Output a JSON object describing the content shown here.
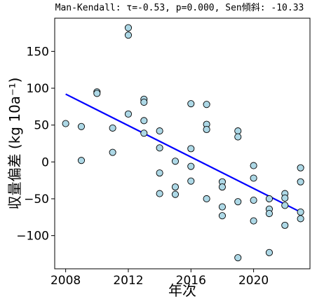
{
  "chart_data": {
    "type": "scatter",
    "title": "Man-Kendall: τ=-0.53, p=0.000, Sen傾斜: -10.33",
    "xlabel": "年次",
    "ylabel": "収量偏差 (kg 10a⁻¹)",
    "xlim": [
      2007.3,
      2023.6
    ],
    "ylim": [
      -145,
      195
    ],
    "xticks": [
      2008,
      2012,
      2016,
      2020
    ],
    "yticks": [
      -100,
      -50,
      0,
      50,
      100,
      150
    ],
    "grid": false,
    "marker_fill": "#add8e6",
    "marker_edge": "#000000",
    "trend_color": "#0000ff",
    "points": [
      [
        2008,
        52
      ],
      [
        2009,
        48
      ],
      [
        2009,
        2
      ],
      [
        2010,
        95
      ],
      [
        2010,
        93
      ],
      [
        2011,
        46
      ],
      [
        2011,
        13
      ],
      [
        2012,
        182
      ],
      [
        2012,
        172
      ],
      [
        2012,
        65
      ],
      [
        2013,
        85
      ],
      [
        2013,
        81
      ],
      [
        2013,
        56
      ],
      [
        2013,
        39
      ],
      [
        2014,
        42
      ],
      [
        2014,
        19
      ],
      [
        2014,
        -15
      ],
      [
        2014,
        -43
      ],
      [
        2015,
        1
      ],
      [
        2015,
        -34
      ],
      [
        2015,
        -44
      ],
      [
        2016,
        79
      ],
      [
        2016,
        18
      ],
      [
        2016,
        -6
      ],
      [
        2016,
        -26
      ],
      [
        2017,
        78
      ],
      [
        2017,
        51
      ],
      [
        2017,
        44
      ],
      [
        2017,
        -50
      ],
      [
        2018,
        -27
      ],
      [
        2018,
        -34
      ],
      [
        2018,
        -61
      ],
      [
        2018,
        -73
      ],
      [
        2019,
        42
      ],
      [
        2019,
        34
      ],
      [
        2019,
        -54
      ],
      [
        2019,
        -130
      ],
      [
        2020,
        -5
      ],
      [
        2020,
        -22
      ],
      [
        2020,
        -52
      ],
      [
        2020,
        -80
      ],
      [
        2021,
        -50
      ],
      [
        2021,
        -64
      ],
      [
        2021,
        -70
      ],
      [
        2021,
        -123
      ],
      [
        2022,
        -43
      ],
      [
        2022,
        -49
      ],
      [
        2022,
        -59
      ],
      [
        2022,
        -86
      ],
      [
        2023,
        -8
      ],
      [
        2023,
        -27
      ],
      [
        2023,
        -68
      ],
      [
        2023,
        -77
      ]
    ],
    "trend": {
      "x": [
        2008,
        2023
      ],
      "y": [
        92,
        -68
      ]
    }
  }
}
